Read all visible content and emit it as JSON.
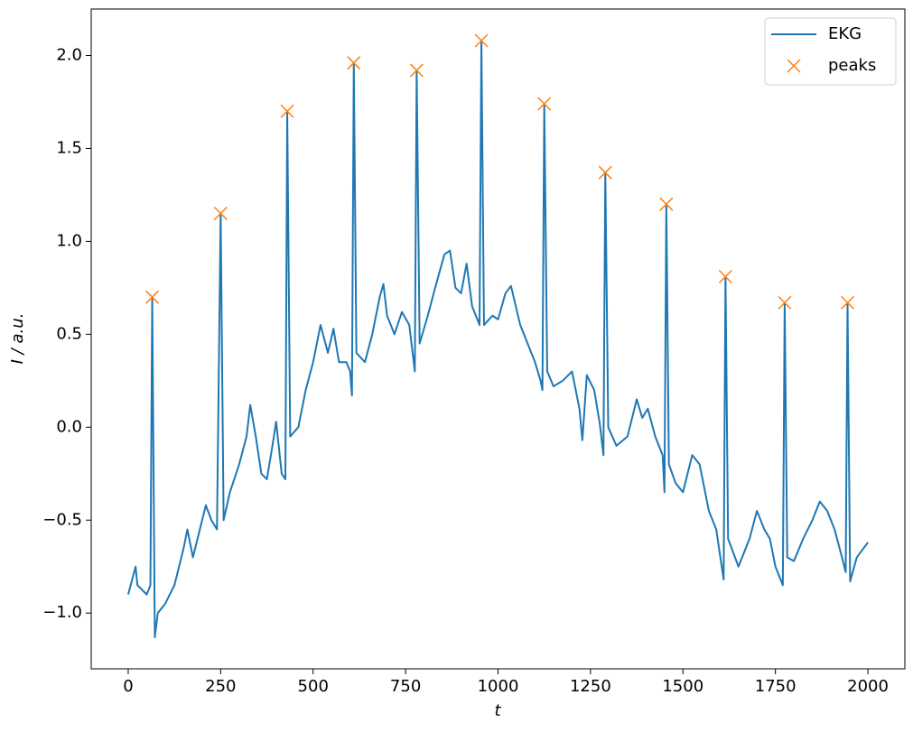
{
  "chart_data": {
    "type": "line",
    "xlabel": "t",
    "ylabel": "I / a.u.",
    "xlim": [
      -100,
      2100
    ],
    "ylim": [
      -1.3,
      2.25
    ],
    "xticks": [
      0,
      250,
      500,
      750,
      1000,
      1250,
      1500,
      1750,
      2000
    ],
    "yticks": [
      {
        "value": -1,
        "label": "−1.0"
      },
      {
        "value": -0.5,
        "label": "−0.5"
      },
      {
        "value": 0,
        "label": "0.0"
      },
      0.5,
      {
        "value": 1,
        "label": "1.0"
      },
      1.5,
      {
        "value": 2,
        "label": "2.0"
      }
    ],
    "legend": "upper right",
    "grid": false,
    "series": [
      {
        "name": "EKG",
        "color": "#1f77b4",
        "kind": "line",
        "x": [
          0,
          20,
          25,
          50,
          60,
          65,
          72,
          80,
          100,
          125,
          150,
          160,
          175,
          200,
          210,
          225,
          240,
          250,
          258,
          275,
          300,
          320,
          330,
          345,
          360,
          375,
          390,
          400,
          415,
          425,
          430,
          438,
          460,
          480,
          500,
          520,
          540,
          555,
          570,
          590,
          600,
          605,
          610,
          617,
          640,
          660,
          680,
          690,
          700,
          720,
          740,
          760,
          775,
          780,
          788,
          810,
          830,
          855,
          870,
          885,
          900,
          915,
          930,
          950,
          955,
          962,
          985,
          1000,
          1020,
          1035,
          1060,
          1080,
          1100,
          1115,
          1120,
          1125,
          1133,
          1150,
          1175,
          1200,
          1220,
          1228,
          1240,
          1260,
          1275,
          1285,
          1290,
          1298,
          1320,
          1350,
          1375,
          1390,
          1405,
          1425,
          1445,
          1450,
          1455,
          1462,
          1480,
          1500,
          1525,
          1545,
          1570,
          1590,
          1610,
          1615,
          1622,
          1650,
          1680,
          1700,
          1720,
          1735,
          1750,
          1770,
          1775,
          1782,
          1800,
          1825,
          1850,
          1870,
          1890,
          1910,
          1930,
          1940,
          1945,
          1952,
          1970,
          2000
        ],
        "values": [
          -0.9,
          -0.75,
          -0.85,
          -0.9,
          -0.85,
          0.7,
          -1.13,
          -1.0,
          -0.95,
          -0.85,
          -0.65,
          -0.55,
          -0.7,
          -0.5,
          -0.42,
          -0.5,
          -0.55,
          1.15,
          -0.5,
          -0.35,
          -0.2,
          -0.05,
          0.12,
          -0.05,
          -0.25,
          -0.28,
          -0.1,
          0.03,
          -0.25,
          -0.28,
          1.7,
          -0.05,
          0.0,
          0.2,
          0.35,
          0.55,
          0.4,
          0.53,
          0.35,
          0.35,
          0.3,
          0.17,
          1.96,
          0.4,
          0.35,
          0.5,
          0.7,
          0.77,
          0.6,
          0.5,
          0.62,
          0.55,
          0.3,
          1.92,
          0.45,
          0.6,
          0.75,
          0.93,
          0.95,
          0.75,
          0.72,
          0.88,
          0.65,
          0.55,
          2.08,
          0.55,
          0.6,
          0.58,
          0.72,
          0.76,
          0.55,
          0.45,
          0.35,
          0.25,
          0.2,
          1.74,
          0.3,
          0.22,
          0.25,
          0.3,
          0.1,
          -0.07,
          0.28,
          0.2,
          0.02,
          -0.15,
          1.37,
          0.0,
          -0.1,
          -0.05,
          0.15,
          0.05,
          0.1,
          -0.05,
          -0.15,
          -0.35,
          1.2,
          -0.2,
          -0.3,
          -0.35,
          -0.15,
          -0.2,
          -0.45,
          -0.55,
          -0.82,
          0.81,
          -0.6,
          -0.75,
          -0.6,
          -0.45,
          -0.55,
          -0.6,
          -0.75,
          -0.85,
          0.67,
          -0.7,
          -0.72,
          -0.6,
          -0.5,
          -0.4,
          -0.45,
          -0.55,
          -0.7,
          -0.78,
          0.67,
          -0.83,
          -0.7,
          -0.62
        ]
      },
      {
        "name": "peaks",
        "color": "#ff7f0e",
        "kind": "scatter",
        "x": [
          65,
          250,
          430,
          610,
          780,
          955,
          1125,
          1290,
          1455,
          1615,
          1775,
          1945
        ],
        "values": [
          0.7,
          1.15,
          1.7,
          1.96,
          1.92,
          2.08,
          1.74,
          1.37,
          1.2,
          0.81,
          0.67,
          0.67
        ]
      }
    ]
  }
}
